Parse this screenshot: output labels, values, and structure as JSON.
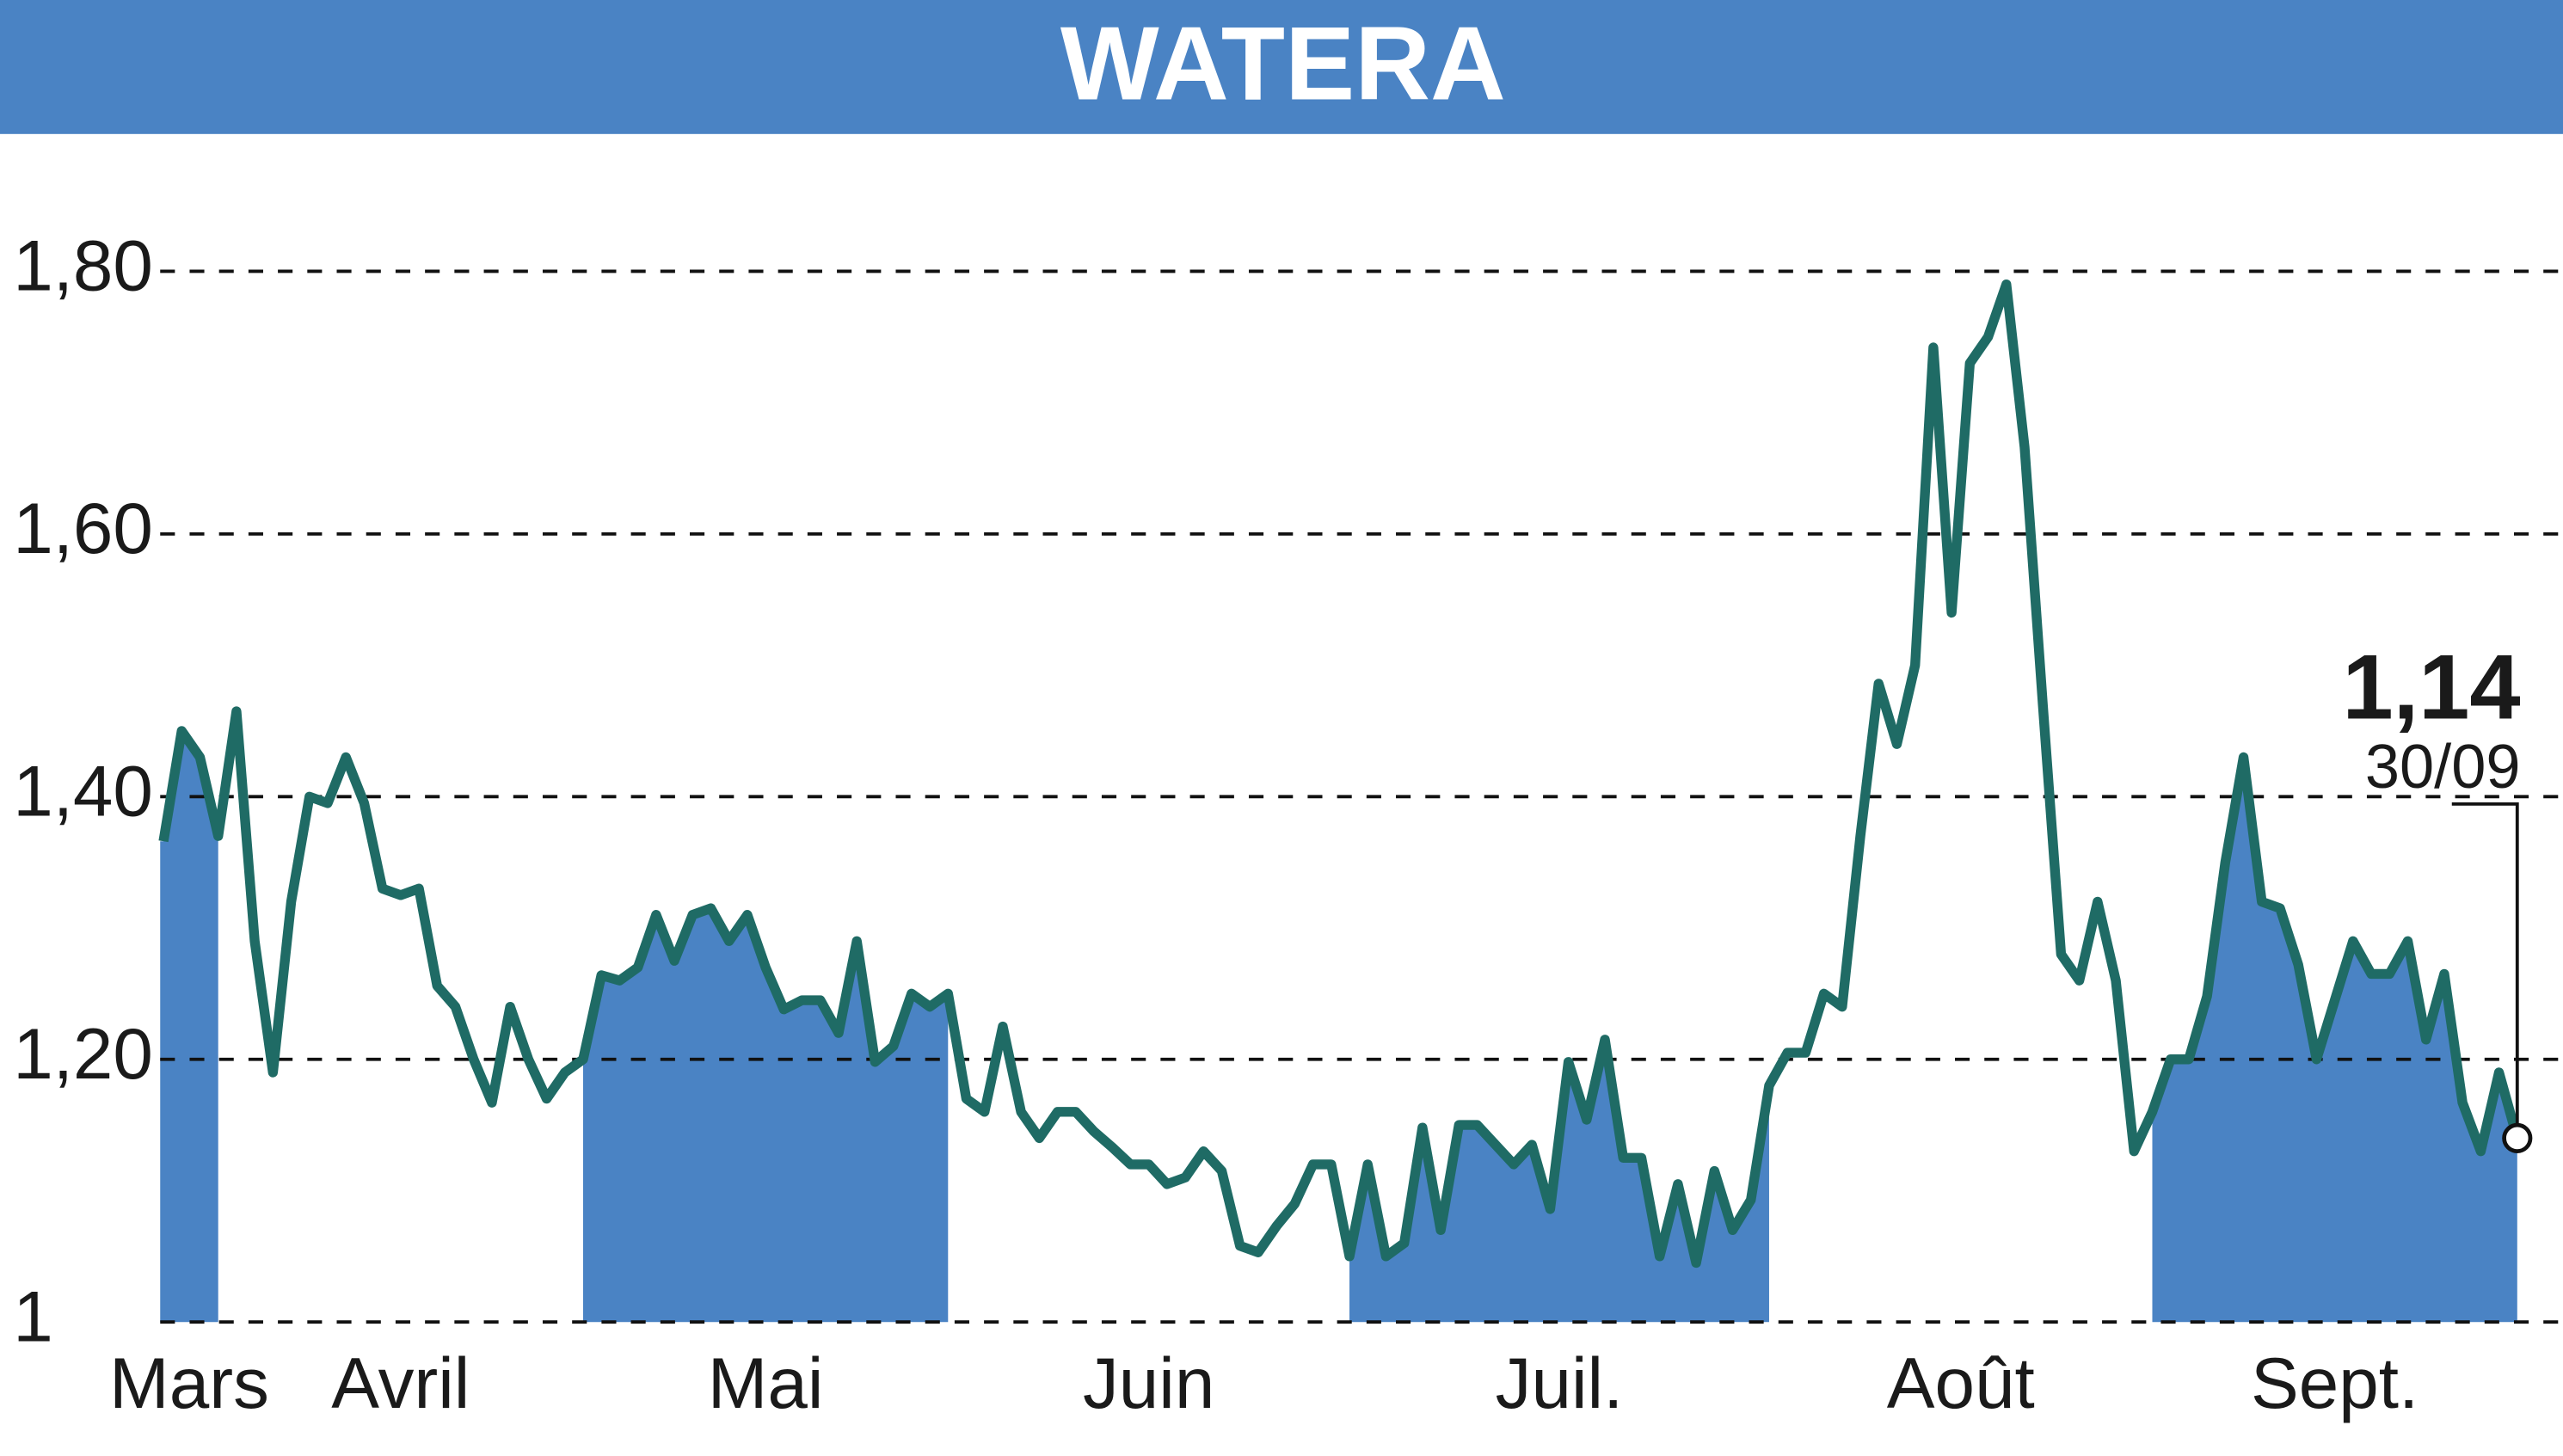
{
  "chart_data": {
    "type": "line",
    "title": "WATERA",
    "categories": [
      "Mars",
      null,
      null,
      "Avril",
      null,
      null,
      null,
      null,
      null,
      null,
      null,
      null,
      null,
      null,
      null,
      null,
      null,
      null,
      null,
      null,
      null,
      null,
      null,
      "Mai",
      null,
      null,
      null,
      null,
      null,
      null,
      null,
      null,
      null,
      null,
      null,
      null,
      null,
      null,
      null,
      null,
      null,
      null,
      null,
      "Juin",
      null,
      null,
      null,
      null,
      null,
      null,
      null,
      null,
      null,
      null,
      null,
      null,
      null,
      null,
      null,
      null,
      null,
      null,
      null,
      null,
      null,
      "Juil.",
      null,
      null,
      null,
      null,
      null,
      null,
      null,
      null,
      null,
      null,
      null,
      null,
      null,
      null,
      null,
      null,
      null,
      null,
      null,
      null,
      null,
      null,
      "Août",
      null,
      null,
      null,
      null,
      null,
      null,
      null,
      null,
      null,
      null,
      null,
      null,
      null,
      null,
      null,
      null,
      null,
      null,
      null,
      null,
      "Sept.",
      null,
      null,
      null,
      null,
      null,
      null,
      null,
      null,
      null,
      null,
      null,
      null,
      null,
      null,
      null,
      null,
      null,
      null,
      null,
      null
    ],
    "values": [
      1.366,
      1.45,
      1.43,
      1.37,
      1.465,
      1.29,
      1.19,
      1.32,
      1.4,
      1.395,
      1.43,
      1.395,
      1.33,
      1.325,
      1.33,
      1.256,
      1.24,
      1.2,
      1.167,
      1.24,
      1.2,
      1.17,
      1.19,
      1.2,
      1.264,
      1.26,
      1.27,
      1.31,
      1.275,
      1.31,
      1.315,
      1.29,
      1.31,
      1.27,
      1.238,
      1.245,
      1.245,
      1.22,
      1.29,
      1.198,
      1.21,
      1.25,
      1.24,
      1.25,
      1.17,
      1.16,
      1.225,
      1.16,
      1.14,
      1.16,
      1.16,
      1.145,
      1.133,
      1.12,
      1.12,
      1.105,
      1.11,
      1.13,
      1.115,
      1.058,
      1.053,
      1.073,
      1.09,
      1.12,
      1.12,
      1.05,
      1.12,
      1.05,
      1.06,
      1.148,
      1.07,
      1.15,
      1.15,
      1.135,
      1.12,
      1.135,
      1.086,
      1.198,
      1.154,
      1.215,
      1.125,
      1.125,
      1.05,
      1.105,
      1.045,
      1.115,
      1.07,
      1.093,
      1.18,
      1.205,
      1.205,
      1.25,
      1.24,
      1.37,
      1.486,
      1.44,
      1.5,
      1.742,
      1.54,
      1.73,
      1.75,
      1.79,
      1.666,
      1.47,
      1.28,
      1.26,
      1.32,
      1.26,
      1.13,
      1.16,
      1.2,
      1.2,
      1.248,
      1.35,
      1.43,
      1.32,
      1.315,
      1.272,
      1.2,
      1.245,
      1.29,
      1.265,
      1.265,
      1.29,
      1.215,
      1.265,
      1.167,
      1.13,
      1.19,
      1.14
    ],
    "value_labels": [
      null,
      null,
      null,
      null,
      null,
      null,
      null,
      null,
      null,
      null,
      null,
      null,
      null,
      null,
      null,
      null,
      null,
      null,
      null,
      null,
      null,
      null,
      null,
      null,
      null,
      null,
      null,
      null,
      null,
      null,
      null,
      null,
      null,
      null,
      null,
      null,
      null,
      null,
      null,
      null,
      null,
      null,
      null,
      null,
      null,
      null,
      null,
      null,
      null,
      null,
      null,
      null,
      null,
      null,
      null,
      null,
      null,
      null,
      null,
      null,
      null,
      null,
      null,
      null,
      null,
      null,
      null,
      null,
      null,
      null,
      null,
      null,
      null,
      null,
      null,
      null,
      null,
      null,
      null,
      null,
      null,
      null,
      null,
      null,
      null,
      null,
      null,
      null,
      null,
      null,
      null,
      null,
      null,
      null,
      null,
      null,
      null,
      null,
      null,
      null,
      null,
      null,
      null,
      null,
      null,
      null,
      null,
      null,
      null,
      null,
      null,
      null,
      null,
      null,
      null,
      null,
      null,
      null,
      null,
      null,
      null,
      null,
      null,
      null,
      null,
      null,
      null,
      null,
      null,
      "1,14"
    ],
    "end_date": "30/09",
    "color": "#1f6b65",
    "shade_color": "#4a83c4",
    "ylim": [
      1,
      1.88
    ],
    "yticks": [
      {
        "value": 1,
        "label": "1"
      },
      {
        "value": 1.2,
        "label": "1,20"
      },
      {
        "value": 1.4,
        "label": "1,40"
      },
      {
        "value": 1.6,
        "label": "1,60"
      },
      {
        "value": 1.8,
        "label": "1,80"
      }
    ],
    "grid": true
  }
}
